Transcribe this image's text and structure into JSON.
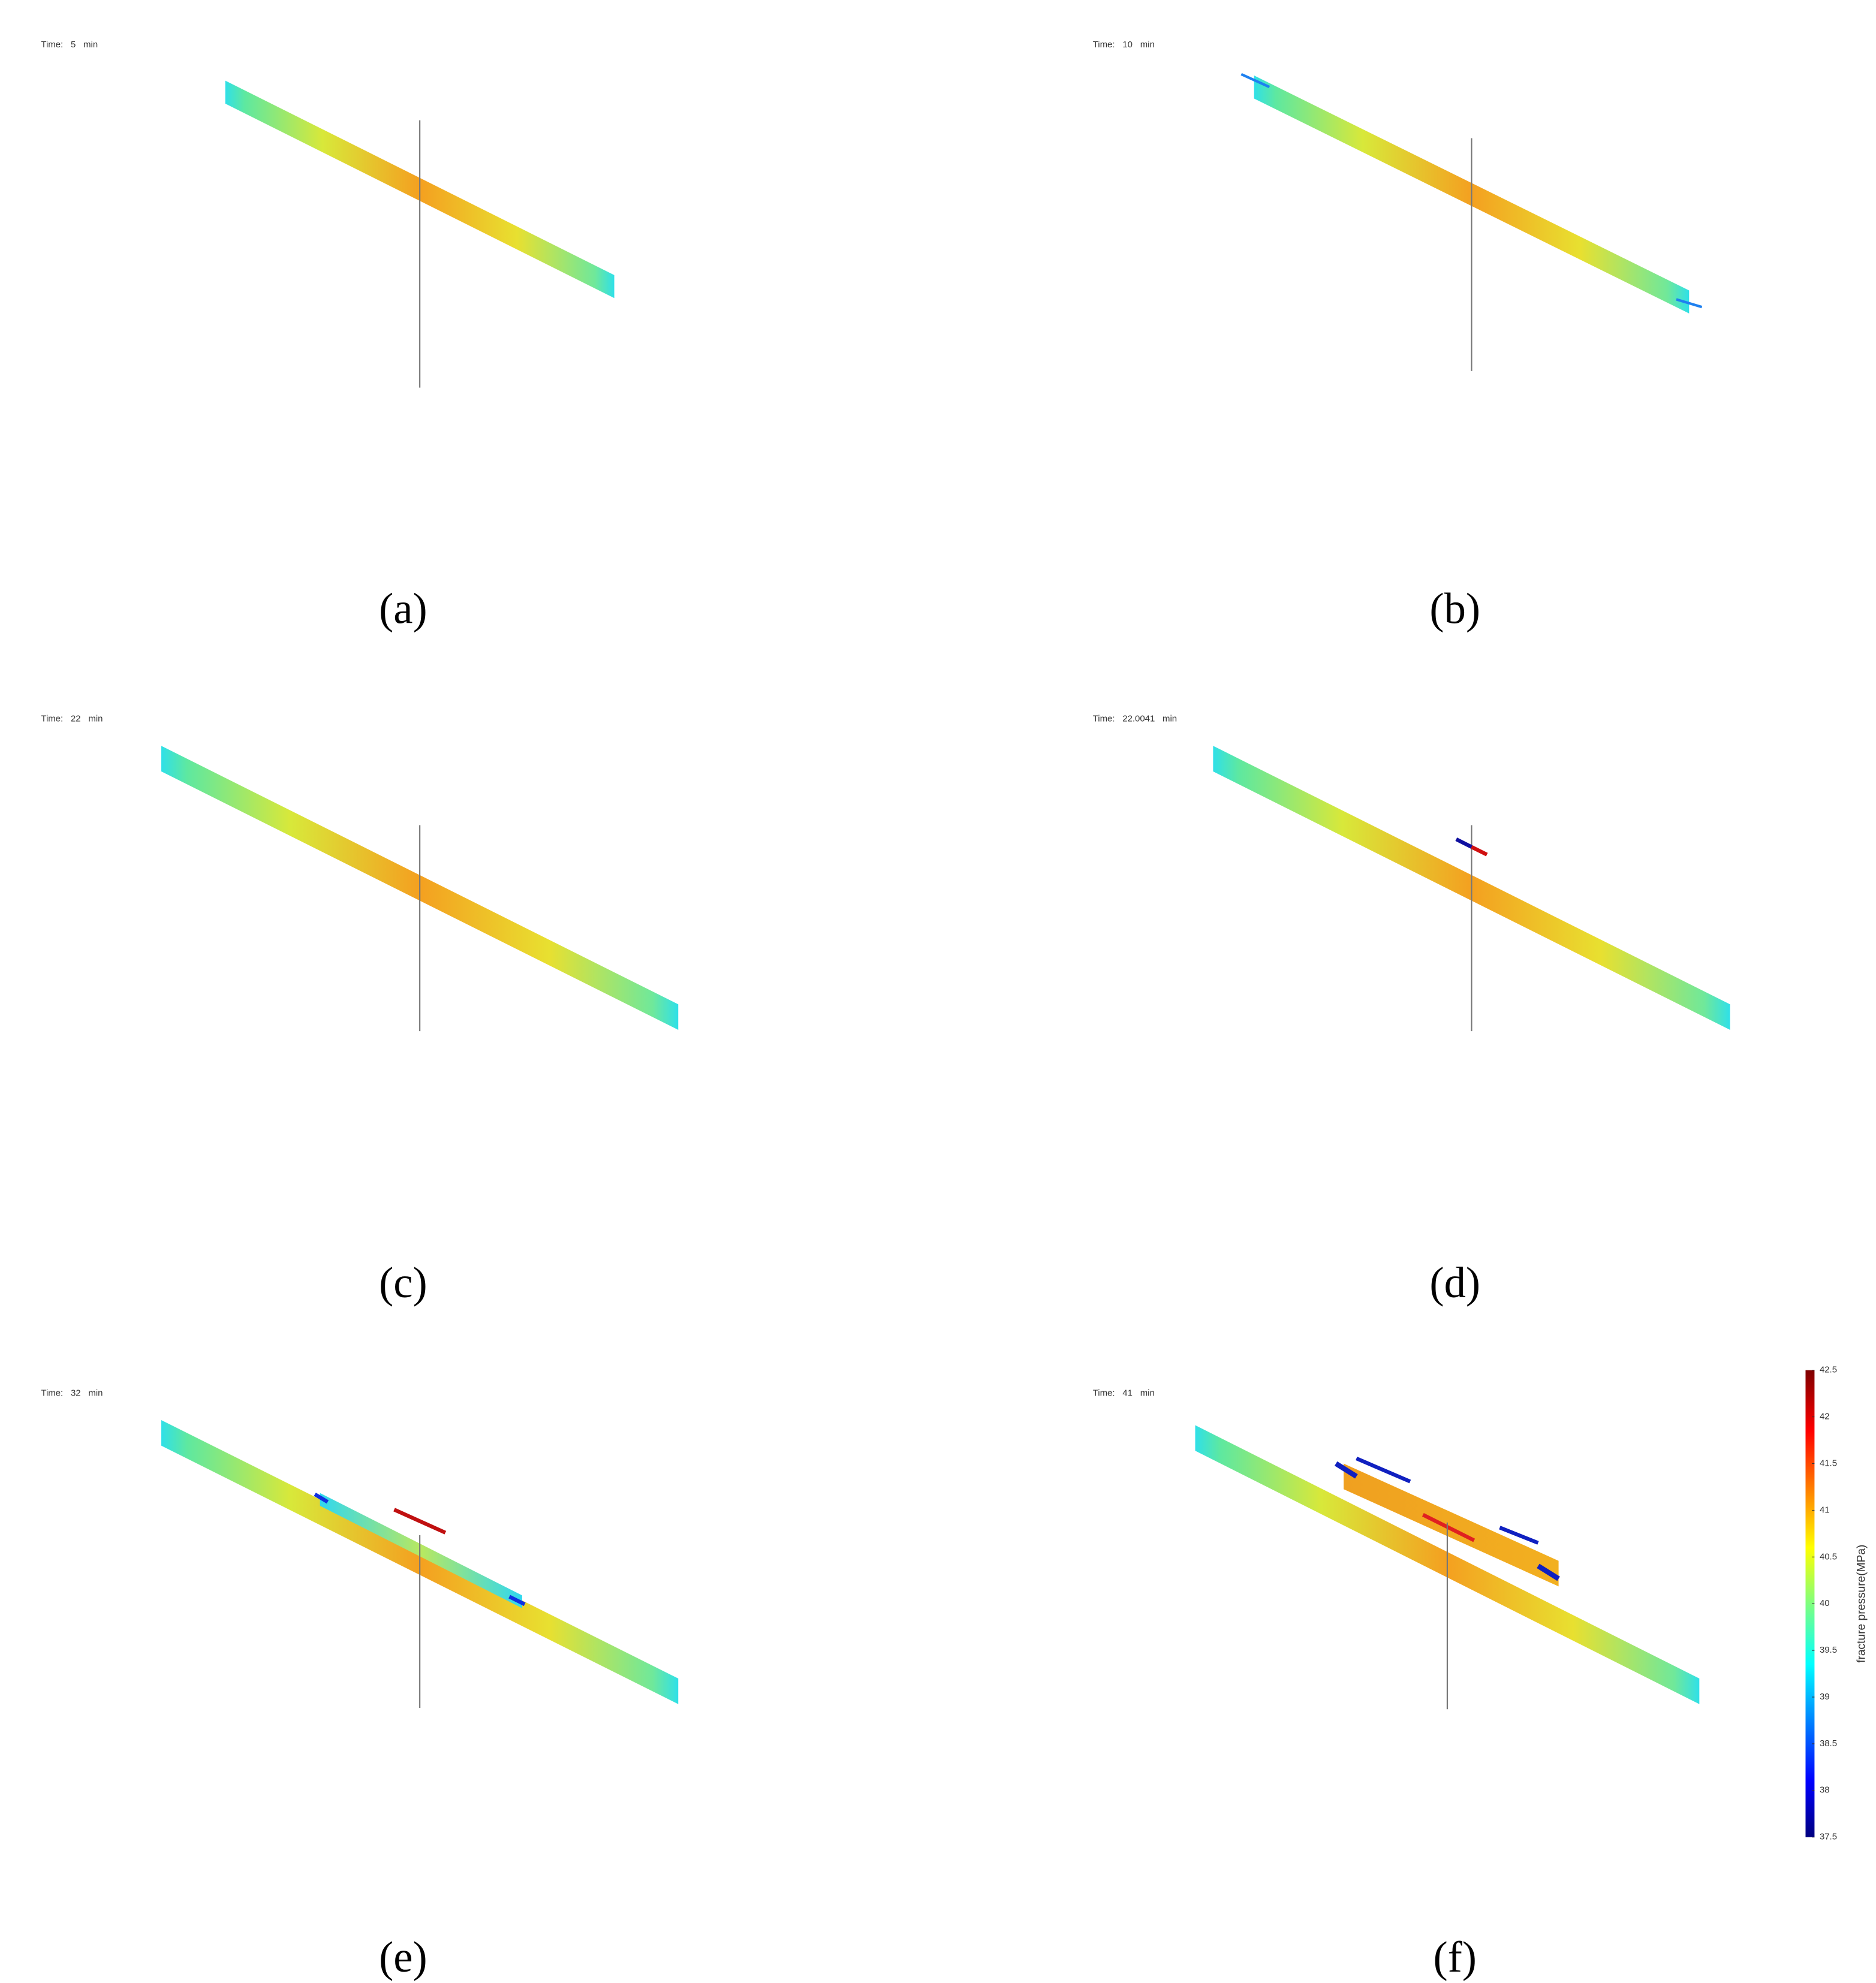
{
  "panels": [
    {
      "time_label": "Time:",
      "time": 5,
      "unit": "min",
      "caption": "(a)"
    },
    {
      "time_label": "Time:",
      "time": 10,
      "unit": "min",
      "caption": "(b)"
    },
    {
      "time_label": "Time:",
      "time": 22,
      "unit": "min",
      "caption": "(c)"
    },
    {
      "time_label": "Time:",
      "time": 22.0041,
      "unit": "min",
      "caption": "(d)"
    },
    {
      "time_label": "Time:",
      "time": 32,
      "unit": "min",
      "caption": "(e)"
    },
    {
      "time_label": "Time:",
      "time": 41,
      "unit": "min",
      "caption": "(f)"
    }
  ],
  "colorbar": {
    "label": "fracture pressure(MPa)",
    "lim": [
      37.5,
      42.5
    ],
    "ticks": [
      37.5,
      38,
      38.5,
      39,
      39.5,
      40,
      40.5,
      41,
      41.5,
      42,
      42.5
    ]
  }
}
